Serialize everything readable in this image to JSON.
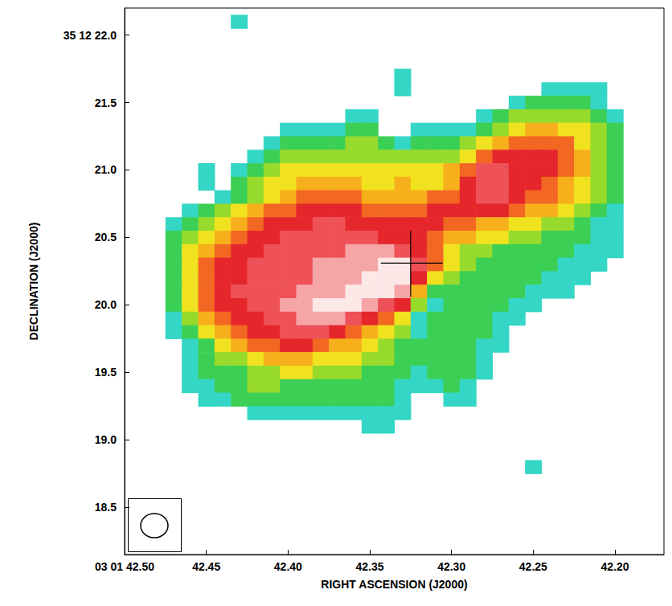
{
  "chart_data": {
    "type": "heatmap",
    "x_label": "RIGHT ASCENSION (J2000)",
    "y_label": "DECLINATION (J2000)",
    "xlim": [
      42.5,
      42.17
    ],
    "ylim": [
      18.15,
      22.2
    ],
    "xticks": [
      {
        "value": 42.5,
        "label": "03 01 42.50"
      },
      42.45,
      {
        "value": 42.4,
        "label": "42.40"
      },
      42.35,
      {
        "value": 42.3,
        "label": "42.30"
      },
      42.25,
      {
        "value": 42.2,
        "label": "42.20"
      }
    ],
    "yticks": [
      {
        "value": 22,
        "label": "35 12 22.0"
      },
      21.5,
      {
        "value": 21,
        "label": "21.0"
      },
      20.5,
      {
        "value": 20,
        "label": "20.0"
      },
      19.5,
      {
        "value": 19,
        "label": "19.0"
      },
      18.5
    ],
    "grid": false,
    "zlim": [
      0,
      10
    ],
    "x": [
      42.47,
      42.46,
      42.45,
      42.44,
      42.43,
      42.42,
      42.41,
      42.4,
      42.39,
      42.38,
      42.37,
      42.36,
      42.35,
      42.34,
      42.33,
      42.32,
      42.31,
      42.3,
      42.29,
      42.28,
      42.27,
      42.26,
      42.25,
      42.24,
      42.23,
      42.22,
      42.21,
      42.2,
      42.19
    ],
    "y": [
      22.1,
      21.7,
      21.6,
      21.5,
      21.4,
      21.3,
      21.2,
      21.1,
      21.0,
      20.9,
      20.8,
      20.7,
      20.6,
      20.5,
      20.4,
      20.3,
      20.2,
      20.1,
      20.0,
      19.9,
      19.8,
      19.7,
      19.6,
      19.5,
      19.4,
      19.3,
      19.2,
      19.1,
      18.8
    ],
    "z": [
      [
        0,
        0,
        0,
        0,
        1,
        0,
        0,
        0,
        0,
        0,
        0,
        0,
        0,
        0,
        0,
        0,
        0,
        0,
        0,
        0,
        0,
        0,
        0,
        0,
        0,
        0,
        0,
        0,
        0
      ],
      [
        0,
        0,
        0,
        0,
        0,
        0,
        0,
        0,
        0,
        0,
        0,
        0,
        0,
        0,
        1,
        0,
        0,
        0,
        0,
        0,
        0,
        0,
        0,
        0,
        0,
        0,
        0,
        0,
        0
      ],
      [
        0,
        0,
        0,
        0,
        0,
        0,
        0,
        0,
        0,
        0,
        0,
        0,
        0,
        0,
        1,
        0,
        0,
        0,
        0,
        0,
        0,
        0,
        0,
        1,
        1,
        1,
        1,
        0,
        0
      ],
      [
        0,
        0,
        0,
        0,
        0,
        0,
        0,
        0,
        0,
        0,
        0,
        0,
        0,
        0,
        0,
        0,
        0,
        0,
        0,
        0,
        0,
        1,
        2,
        2,
        2,
        2,
        1,
        0,
        0
      ],
      [
        0,
        0,
        0,
        0,
        0,
        0,
        0,
        0,
        0,
        0,
        0,
        1,
        1,
        0,
        0,
        0,
        0,
        0,
        0,
        1,
        2,
        3,
        3,
        3,
        3,
        3,
        2,
        1,
        0
      ],
      [
        0,
        0,
        0,
        0,
        0,
        0,
        0,
        1,
        1,
        1,
        1,
        2,
        2,
        0,
        0,
        1,
        1,
        1,
        1,
        2,
        3,
        4,
        5,
        5,
        4,
        4,
        3,
        2,
        0
      ],
      [
        0,
        0,
        0,
        0,
        0,
        0,
        1,
        2,
        2,
        2,
        2,
        3,
        3,
        2,
        1,
        2,
        2,
        2,
        3,
        4,
        5,
        6,
        6,
        6,
        6,
        4,
        3,
        2,
        0
      ],
      [
        0,
        0,
        0,
        0,
        0,
        1,
        2,
        3,
        3,
        3,
        3,
        3,
        3,
        3,
        3,
        3,
        3,
        3,
        4,
        6,
        7,
        7,
        7,
        7,
        6,
        5,
        3,
        2,
        0
      ],
      [
        0,
        0,
        1,
        0,
        1,
        2,
        3,
        4,
        4,
        4,
        4,
        4,
        4,
        4,
        4,
        4,
        4,
        5,
        6,
        8,
        8,
        7,
        7,
        7,
        6,
        5,
        3,
        2,
        0
      ],
      [
        0,
        0,
        1,
        0,
        2,
        3,
        4,
        4,
        5,
        5,
        5,
        5,
        4,
        4,
        5,
        4,
        4,
        5,
        7,
        8,
        8,
        7,
        7,
        6,
        5,
        4,
        3,
        2,
        0
      ],
      [
        0,
        0,
        0,
        1,
        2,
        3,
        4,
        5,
        6,
        6,
        6,
        6,
        5,
        5,
        5,
        5,
        6,
        6,
        7,
        8,
        8,
        7,
        6,
        6,
        5,
        4,
        3,
        2,
        0
      ],
      [
        0,
        1,
        2,
        3,
        4,
        5,
        6,
        6,
        7,
        7,
        7,
        7,
        6,
        6,
        6,
        6,
        7,
        7,
        7,
        7,
        7,
        6,
        5,
        5,
        4,
        3,
        2,
        1,
        0
      ],
      [
        1,
        2,
        3,
        4,
        5,
        6,
        7,
        7,
        7,
        8,
        8,
        7,
        7,
        7,
        7,
        7,
        7,
        6,
        6,
        5,
        5,
        4,
        4,
        3,
        3,
        2,
        1,
        1,
        0
      ],
      [
        2,
        3,
        4,
        5,
        6,
        7,
        7,
        8,
        8,
        8,
        8,
        8,
        8,
        7,
        7,
        7,
        6,
        5,
        5,
        4,
        4,
        3,
        3,
        2,
        2,
        2,
        1,
        1,
        0
      ],
      [
        2,
        4,
        5,
        6,
        7,
        7,
        8,
        8,
        8,
        8,
        8,
        9,
        9,
        9,
        8,
        7,
        6,
        4,
        3,
        3,
        2,
        2,
        2,
        2,
        2,
        1,
        1,
        1,
        0
      ],
      [
        2,
        4,
        6,
        7,
        7,
        8,
        8,
        8,
        8,
        9,
        9,
        9,
        9,
        10,
        10,
        8,
        6,
        4,
        3,
        2,
        2,
        2,
        2,
        2,
        1,
        1,
        1,
        0,
        0
      ],
      [
        2,
        4,
        6,
        7,
        7,
        8,
        8,
        8,
        8,
        9,
        9,
        9,
        10,
        10,
        10,
        7,
        4,
        3,
        2,
        2,
        2,
        2,
        2,
        1,
        1,
        1,
        0,
        0,
        0
      ],
      [
        2,
        4,
        6,
        7,
        8,
        8,
        8,
        8,
        9,
        9,
        9,
        10,
        10,
        10,
        9,
        5,
        2,
        2,
        2,
        2,
        2,
        2,
        1,
        1,
        1,
        0,
        0,
        0,
        0
      ],
      [
        2,
        4,
        6,
        7,
        7,
        8,
        8,
        9,
        9,
        10,
        10,
        10,
        9,
        8,
        7,
        3,
        1,
        2,
        2,
        2,
        2,
        1,
        1,
        0,
        0,
        0,
        0,
        0,
        0
      ],
      [
        1,
        3,
        5,
        6,
        7,
        7,
        8,
        8,
        9,
        9,
        9,
        8,
        7,
        6,
        4,
        1,
        2,
        2,
        2,
        2,
        1,
        1,
        0,
        0,
        0,
        0,
        0,
        0,
        0
      ],
      [
        1,
        2,
        4,
        5,
        6,
        7,
        7,
        8,
        8,
        8,
        7,
        6,
        5,
        4,
        3,
        1,
        2,
        2,
        2,
        2,
        1,
        0,
        0,
        0,
        0,
        0,
        0,
        0,
        0
      ],
      [
        0,
        1,
        2,
        4,
        5,
        6,
        6,
        7,
        7,
        6,
        5,
        5,
        4,
        3,
        2,
        2,
        2,
        2,
        2,
        1,
        1,
        0,
        0,
        0,
        0,
        0,
        0,
        0,
        0
      ],
      [
        0,
        1,
        2,
        3,
        3,
        4,
        5,
        5,
        5,
        4,
        4,
        4,
        3,
        3,
        2,
        2,
        2,
        2,
        2,
        1,
        0,
        0,
        0,
        0,
        0,
        0,
        0,
        0,
        0
      ],
      [
        0,
        1,
        2,
        2,
        2,
        3,
        3,
        4,
        4,
        3,
        3,
        3,
        2,
        2,
        2,
        1,
        2,
        2,
        2,
        1,
        0,
        0,
        0,
        0,
        0,
        0,
        0,
        0,
        0
      ],
      [
        0,
        1,
        1,
        2,
        2,
        3,
        3,
        2,
        2,
        2,
        2,
        2,
        2,
        2,
        1,
        1,
        1,
        2,
        1,
        0,
        0,
        0,
        0,
        0,
        0,
        0,
        0,
        0,
        0
      ],
      [
        0,
        0,
        1,
        1,
        2,
        2,
        2,
        2,
        2,
        2,
        2,
        2,
        2,
        2,
        1,
        0,
        0,
        1,
        1,
        0,
        0,
        0,
        0,
        0,
        0,
        0,
        0,
        0,
        0
      ],
      [
        0,
        0,
        0,
        0,
        0,
        1,
        1,
        1,
        1,
        1,
        1,
        1,
        1,
        1,
        1,
        0,
        0,
        0,
        0,
        0,
        0,
        0,
        0,
        0,
        0,
        0,
        0,
        0,
        0
      ],
      [
        0,
        0,
        0,
        0,
        0,
        0,
        0,
        0,
        0,
        0,
        0,
        0,
        1,
        1,
        0,
        0,
        0,
        0,
        0,
        0,
        0,
        0,
        0,
        0,
        0,
        0,
        0,
        0,
        0
      ],
      [
        0,
        0,
        0,
        0,
        0,
        0,
        0,
        0,
        0,
        0,
        0,
        0,
        0,
        0,
        0,
        0,
        0,
        0,
        0,
        0,
        0,
        0,
        1,
        0,
        0,
        0,
        0,
        0,
        0
      ]
    ],
    "markers": [
      {
        "x": 42.325,
        "y": 20.31,
        "marker": "cross"
      }
    ]
  }
}
